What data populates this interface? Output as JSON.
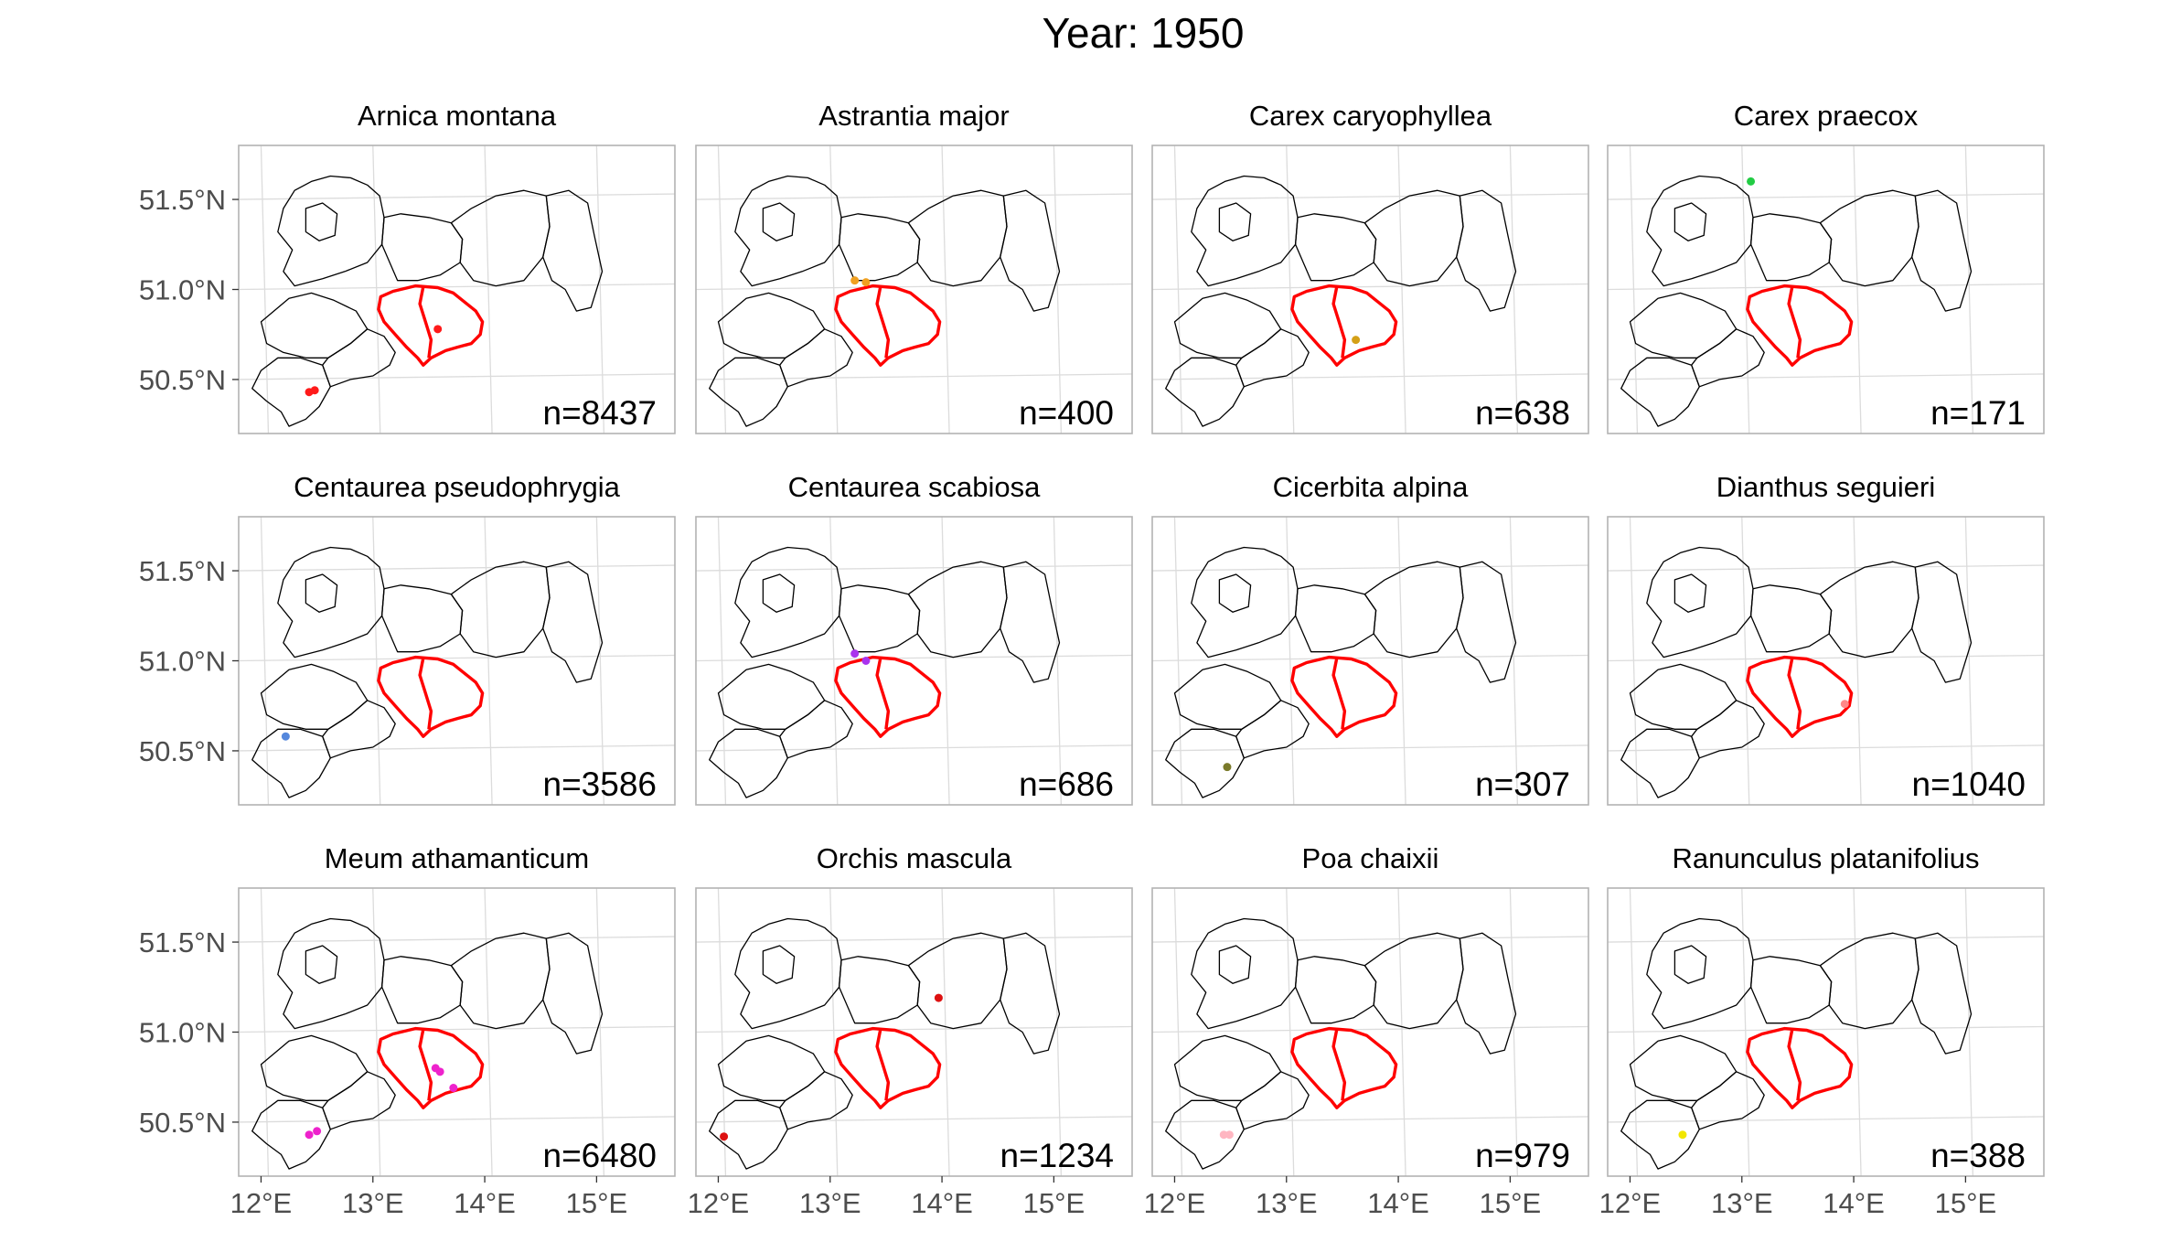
{
  "figure": {
    "title": "Year: 1950",
    "x_ticks": [
      "12°E",
      "13°E",
      "14°E",
      "15°E"
    ],
    "y_ticks": [
      "51.5°N",
      "51.0°N",
      "50.5°N"
    ],
    "study_area_color": "#ff0000",
    "region_outline_color": "#000000"
  },
  "chart_data": [
    {
      "type": "scatter",
      "title": "Arnica montana",
      "count_label": "n=8437",
      "point_color": "#ff1a1a",
      "x": [
        12.43,
        12.48,
        13.58
      ],
      "y": [
        50.43,
        50.44,
        50.78
      ],
      "xlim": [
        11.8,
        15.7
      ],
      "ylim": [
        50.2,
        51.8
      ],
      "grid": true
    },
    {
      "type": "scatter",
      "title": "Astrantia major",
      "count_label": "n=400",
      "point_color": "#f0a020",
      "x": [
        13.22,
        13.32
      ],
      "y": [
        51.05,
        51.04
      ],
      "xlim": [
        11.8,
        15.7
      ],
      "ylim": [
        50.2,
        51.8
      ],
      "grid": true
    },
    {
      "type": "scatter",
      "title": "Carex caryophyllea",
      "count_label": "n=638",
      "point_color": "#d4a017",
      "x": [
        13.62
      ],
      "y": [
        50.72
      ],
      "xlim": [
        11.8,
        15.7
      ],
      "ylim": [
        50.2,
        51.8
      ],
      "grid": true
    },
    {
      "type": "scatter",
      "title": "Carex praecox",
      "count_label": "n=171",
      "point_color": "#22cc44",
      "x": [
        13.08
      ],
      "y": [
        51.6
      ],
      "xlim": [
        11.8,
        15.7
      ],
      "ylim": [
        50.2,
        51.8
      ],
      "grid": true
    },
    {
      "type": "scatter",
      "title": "Centaurea pseudophrygia",
      "count_label": "n=3586",
      "point_color": "#5588dd",
      "x": [
        12.22
      ],
      "y": [
        50.58
      ],
      "xlim": [
        11.8,
        15.7
      ],
      "ylim": [
        50.2,
        51.8
      ],
      "grid": true
    },
    {
      "type": "scatter",
      "title": "Centaurea scabiosa",
      "count_label": "n=686",
      "point_color": "#aa33ee",
      "x": [
        13.22,
        13.32
      ],
      "y": [
        51.04,
        51.0
      ],
      "xlim": [
        11.8,
        15.7
      ],
      "ylim": [
        50.2,
        51.8
      ],
      "grid": true
    },
    {
      "type": "scatter",
      "title": "Cicerbita alpina",
      "count_label": "n=307",
      "point_color": "#7a7a2a",
      "x": [
        12.47
      ],
      "y": [
        50.41
      ],
      "xlim": [
        11.8,
        15.7
      ],
      "ylim": [
        50.2,
        51.8
      ],
      "grid": true
    },
    {
      "type": "scatter",
      "title": "Dianthus seguieri",
      "count_label": "n=1040",
      "point_color": "#ff8888",
      "x": [
        13.92
      ],
      "y": [
        50.76
      ],
      "xlim": [
        11.8,
        15.7
      ],
      "ylim": [
        50.2,
        51.8
      ],
      "grid": true
    },
    {
      "type": "scatter",
      "title": "Meum athamanticum",
      "count_label": "n=6480",
      "point_color": "#ee22cc",
      "x": [
        12.43,
        12.5,
        13.56,
        13.6,
        13.72
      ],
      "y": [
        50.43,
        50.45,
        50.8,
        50.78,
        50.69
      ],
      "xlim": [
        11.8,
        15.7
      ],
      "ylim": [
        50.2,
        51.8
      ],
      "grid": true
    },
    {
      "type": "scatter",
      "title": "Orchis mascula",
      "count_label": "n=1234",
      "point_color": "#dd1111",
      "x": [
        12.05,
        13.97
      ],
      "y": [
        50.42,
        51.19
      ],
      "xlim": [
        11.8,
        15.7
      ],
      "ylim": [
        50.2,
        51.8
      ],
      "grid": true
    },
    {
      "type": "scatter",
      "title": "Poa chaixii",
      "count_label": "n=979",
      "point_color": "#ffb6c1",
      "x": [
        12.44,
        12.49
      ],
      "y": [
        50.43,
        50.43
      ],
      "xlim": [
        11.8,
        15.7
      ],
      "ylim": [
        50.2,
        51.8
      ],
      "grid": true
    },
    {
      "type": "scatter",
      "title": "Ranunculus platanifolius",
      "count_label": "n=388",
      "point_color": "#f2e600",
      "x": [
        12.47
      ],
      "y": [
        50.43
      ],
      "xlim": [
        11.8,
        15.7
      ],
      "ylim": [
        50.2,
        51.8
      ],
      "grid": true
    }
  ]
}
